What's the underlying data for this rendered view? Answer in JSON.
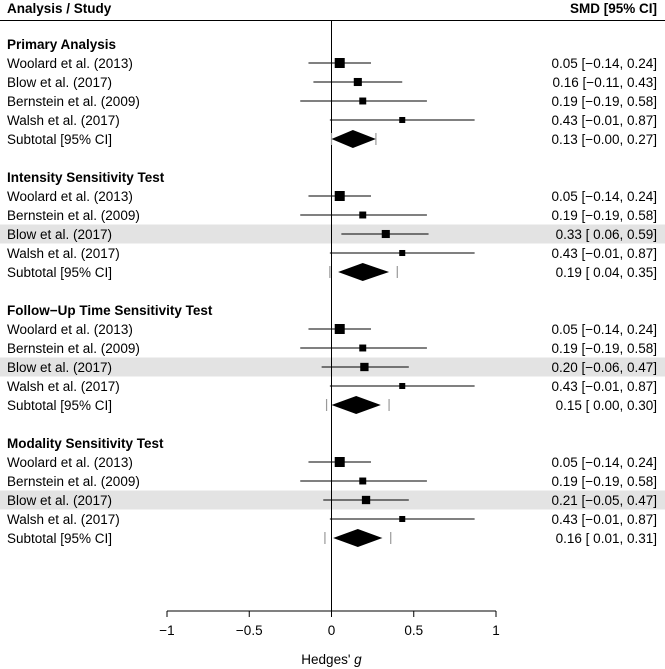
{
  "chart_data": {
    "type": "forest",
    "header": {
      "left": "Analysis / Study",
      "right": "SMD [95% CI]"
    },
    "xlabel_prefix": "Hedges' ",
    "xlabel_var": "g",
    "xlim": [
      -1,
      1
    ],
    "xticks": [
      -1,
      -0.5,
      0,
      0.5,
      1
    ],
    "xtick_labels": [
      "−1",
      "−0.5",
      "0",
      "0.5",
      "1"
    ],
    "reference_line": 0,
    "highlight_color": "#e3e3e3",
    "sections": [
      {
        "title": "Primary Analysis",
        "studies": [
          {
            "label": "Woolard et al. (2013)",
            "est": 0.05,
            "lo": -0.14,
            "hi": 0.24,
            "ci_text": "0.05 [−0.14, 0.24]",
            "weight": 1.0,
            "highlight": false
          },
          {
            "label": "Blow et al. (2017)",
            "est": 0.16,
            "lo": -0.11,
            "hi": 0.43,
            "ci_text": "0.16 [−0.11, 0.43]",
            "weight": 0.55,
            "highlight": false
          },
          {
            "label": "Bernstein et al. (2009)",
            "est": 0.19,
            "lo": -0.19,
            "hi": 0.58,
            "ci_text": "0.19 [−0.19, 0.58]",
            "weight": 0.35,
            "highlight": false
          },
          {
            "label": "Walsh et al. (2017)",
            "est": 0.43,
            "lo": -0.01,
            "hi": 0.87,
            "ci_text": "0.43 [−0.01, 0.87]",
            "weight": 0.22,
            "highlight": false
          }
        ],
        "subtotal": {
          "label": "Subtotal [95% CI]",
          "est": 0.13,
          "lo": -0.0,
          "hi": 0.27,
          "pi": [
            -0.0,
            0.27
          ],
          "ci_text": "0.13 [−0.00, 0.27]"
        }
      },
      {
        "title": "Intensity Sensitivity Test",
        "studies": [
          {
            "label": "Woolard et al. (2013)",
            "est": 0.05,
            "lo": -0.14,
            "hi": 0.24,
            "ci_text": "0.05 [−0.14, 0.24]",
            "weight": 1.0,
            "highlight": false
          },
          {
            "label": "Bernstein et al. (2009)",
            "est": 0.19,
            "lo": -0.19,
            "hi": 0.58,
            "ci_text": "0.19 [−0.19, 0.58]",
            "weight": 0.35,
            "highlight": false
          },
          {
            "label": "Blow et al. (2017)",
            "est": 0.33,
            "lo": 0.06,
            "hi": 0.59,
            "ci_text": "0.33 [ 0.06, 0.59]",
            "weight": 0.55,
            "highlight": true
          },
          {
            "label": "Walsh et al. (2017)",
            "est": 0.43,
            "lo": -0.01,
            "hi": 0.87,
            "ci_text": "0.43 [−0.01, 0.87]",
            "weight": 0.22,
            "highlight": false
          }
        ],
        "subtotal": {
          "label": "Subtotal [95% CI]",
          "est": 0.19,
          "lo": 0.04,
          "hi": 0.35,
          "pi": [
            -0.01,
            0.4
          ],
          "ci_text": "0.19 [ 0.04, 0.35]"
        }
      },
      {
        "title": "Follow−Up Time Sensitivity Test",
        "studies": [
          {
            "label": "Woolard et al. (2013)",
            "est": 0.05,
            "lo": -0.14,
            "hi": 0.24,
            "ci_text": "0.05 [−0.14, 0.24]",
            "weight": 1.0,
            "highlight": false
          },
          {
            "label": "Bernstein et al. (2009)",
            "est": 0.19,
            "lo": -0.19,
            "hi": 0.58,
            "ci_text": "0.19 [−0.19, 0.58]",
            "weight": 0.35,
            "highlight": false
          },
          {
            "label": "Blow et al. (2017)",
            "est": 0.2,
            "lo": -0.06,
            "hi": 0.47,
            "ci_text": "0.20 [−0.06, 0.47]",
            "weight": 0.6,
            "highlight": true
          },
          {
            "label": "Walsh et al. (2017)",
            "est": 0.43,
            "lo": -0.01,
            "hi": 0.87,
            "ci_text": "0.43 [−0.01, 0.87]",
            "weight": 0.22,
            "highlight": false
          }
        ],
        "subtotal": {
          "label": "Subtotal [95% CI]",
          "est": 0.15,
          "lo": 0.0,
          "hi": 0.3,
          "pi": [
            -0.03,
            0.35
          ],
          "ci_text": "0.15 [ 0.00, 0.30]"
        }
      },
      {
        "title": "Modality Sensitivity Test",
        "studies": [
          {
            "label": "Woolard et al. (2013)",
            "est": 0.05,
            "lo": -0.14,
            "hi": 0.24,
            "ci_text": "0.05 [−0.14, 0.24]",
            "weight": 1.0,
            "highlight": false
          },
          {
            "label": "Bernstein et al. (2009)",
            "est": 0.19,
            "lo": -0.19,
            "hi": 0.58,
            "ci_text": "0.19 [−0.19, 0.58]",
            "weight": 0.35,
            "highlight": false
          },
          {
            "label": "Blow et al. (2017)",
            "est": 0.21,
            "lo": -0.05,
            "hi": 0.47,
            "ci_text": "0.21 [−0.05, 0.47]",
            "weight": 0.6,
            "highlight": true
          },
          {
            "label": "Walsh et al. (2017)",
            "est": 0.43,
            "lo": -0.01,
            "hi": 0.87,
            "ci_text": "0.43 [−0.01, 0.87]",
            "weight": 0.22,
            "highlight": false
          }
        ],
        "subtotal": {
          "label": "Subtotal [95% CI]",
          "est": 0.16,
          "lo": 0.01,
          "hi": 0.31,
          "pi": [
            -0.04,
            0.36
          ],
          "ci_text": "0.16 [ 0.01, 0.31]"
        }
      }
    ]
  }
}
